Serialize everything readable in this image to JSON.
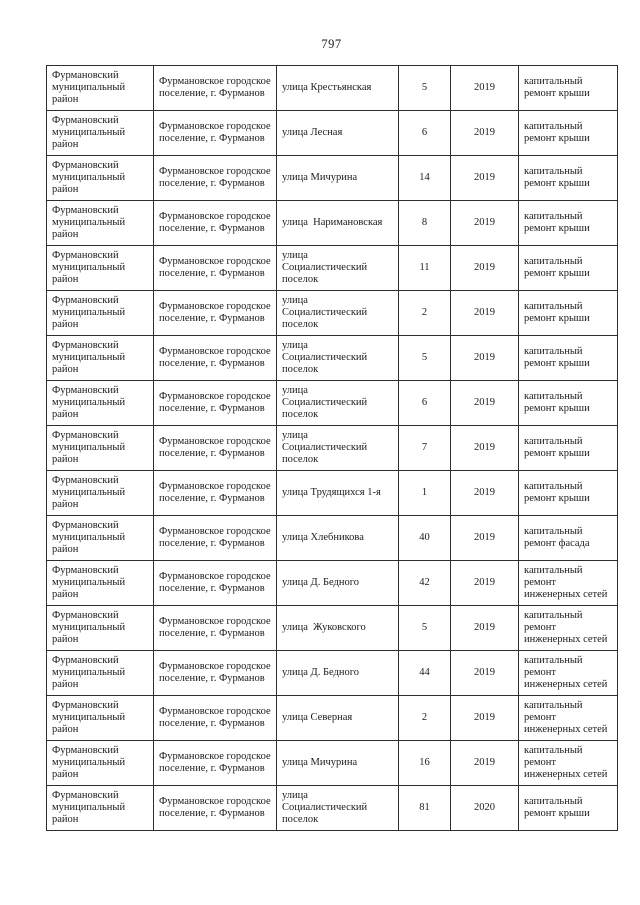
{
  "page_number": "797",
  "table": {
    "rows": [
      {
        "district": "Фурмановский муниципальный район",
        "settlement": "Фурмановское городское поселение, г. Фурманов",
        "street": "улица Крестьянская",
        "house": "5",
        "year": "2019",
        "work": "капитальный ремонт крыши"
      },
      {
        "district": "Фурмановский муниципальный район",
        "settlement": "Фурмановское городское поселение, г. Фурманов",
        "street": "улица Лесная",
        "house": "6",
        "year": "2019",
        "work": "капитальный ремонт крыши"
      },
      {
        "district": "Фурмановский муниципальный район",
        "settlement": "Фурмановское городское поселение, г. Фурманов",
        "street": "улица Мичурина",
        "house": "14",
        "year": "2019",
        "work": "капитальный ремонт крыши"
      },
      {
        "district": "Фурмановский муниципальный район",
        "settlement": "Фурмановское городское поселение, г. Фурманов",
        "street": "улица  Наримановская",
        "house": "8",
        "year": "2019",
        "work": "капитальный ремонт крыши"
      },
      {
        "district": "Фурмановский муниципальный район",
        "settlement": "Фурмановское городское поселение, г. Фурманов",
        "street": "улица Социалистический поселок",
        "house": "11",
        "year": "2019",
        "work": "капитальный ремонт крыши"
      },
      {
        "district": "Фурмановский муниципальный район",
        "settlement": "Фурмановское городское поселение, г. Фурманов",
        "street": "улица Социалистический поселок",
        "house": "2",
        "year": "2019",
        "work": "капитальный ремонт крыши"
      },
      {
        "district": "Фурмановский муниципальный район",
        "settlement": "Фурмановское городское поселение, г. Фурманов",
        "street": "улица Социалистический поселок",
        "house": "5",
        "year": "2019",
        "work": "капитальный ремонт крыши"
      },
      {
        "district": "Фурмановский муниципальный район",
        "settlement": "Фурмановское городское поселение, г. Фурманов",
        "street": "улица Социалистический поселок",
        "house": "6",
        "year": "2019",
        "work": "капитальный ремонт крыши"
      },
      {
        "district": "Фурмановский муниципальный район",
        "settlement": "Фурмановское городское поселение, г. Фурманов",
        "street": "улица Социалистический поселок",
        "house": "7",
        "year": "2019",
        "work": "капитальный ремонт крыши"
      },
      {
        "district": "Фурмановский муниципальный район",
        "settlement": "Фурмановское городское поселение, г. Фурманов",
        "street": "улица Трудящихся 1-я",
        "house": "1",
        "year": "2019",
        "work": "капитальный ремонт крыши"
      },
      {
        "district": "Фурмановский муниципальный район",
        "settlement": "Фурмановское городское поселение, г. Фурманов",
        "street": "улица Хлебникова",
        "house": "40",
        "year": "2019",
        "work": "капитальный ремонт фасада"
      },
      {
        "district": "Фурмановский муниципальный район",
        "settlement": "Фурмановское городское поселение, г. Фурманов",
        "street": "улица Д. Бедного",
        "house": "42",
        "year": "2019",
        "work": "капитальный ремонт инженерных сетей"
      },
      {
        "district": "Фурмановский муниципальный район",
        "settlement": "Фурмановское городское поселение, г. Фурманов",
        "street": "улица  Жуковского",
        "house": "5",
        "year": "2019",
        "work": "капитальный ремонт инженерных сетей"
      },
      {
        "district": "Фурмановский муниципальный район",
        "settlement": "Фурмановское городское поселение, г. Фурманов",
        "street": "улица Д. Бедного",
        "house": "44",
        "year": "2019",
        "work": "капитальный ремонт инженерных сетей"
      },
      {
        "district": "Фурмановский муниципальный район",
        "settlement": "Фурмановское городское поселение, г. Фурманов",
        "street": "улица Северная",
        "house": "2",
        "year": "2019",
        "work": "капитальный ремонт инженерных сетей"
      },
      {
        "district": "Фурмановский муниципальный район",
        "settlement": "Фурмановское городское поселение, г. Фурманов",
        "street": "улица Мичурина",
        "house": "16",
        "year": "2019",
        "work": "капитальный ремонт инженерных сетей"
      },
      {
        "district": "Фурмановский муниципальный район",
        "settlement": "Фурмановское городское поселение, г. Фурманов",
        "street": "улица Социалистический поселок",
        "house": "81",
        "year": "2020",
        "work": "капитальный ремонт крыши"
      }
    ]
  }
}
